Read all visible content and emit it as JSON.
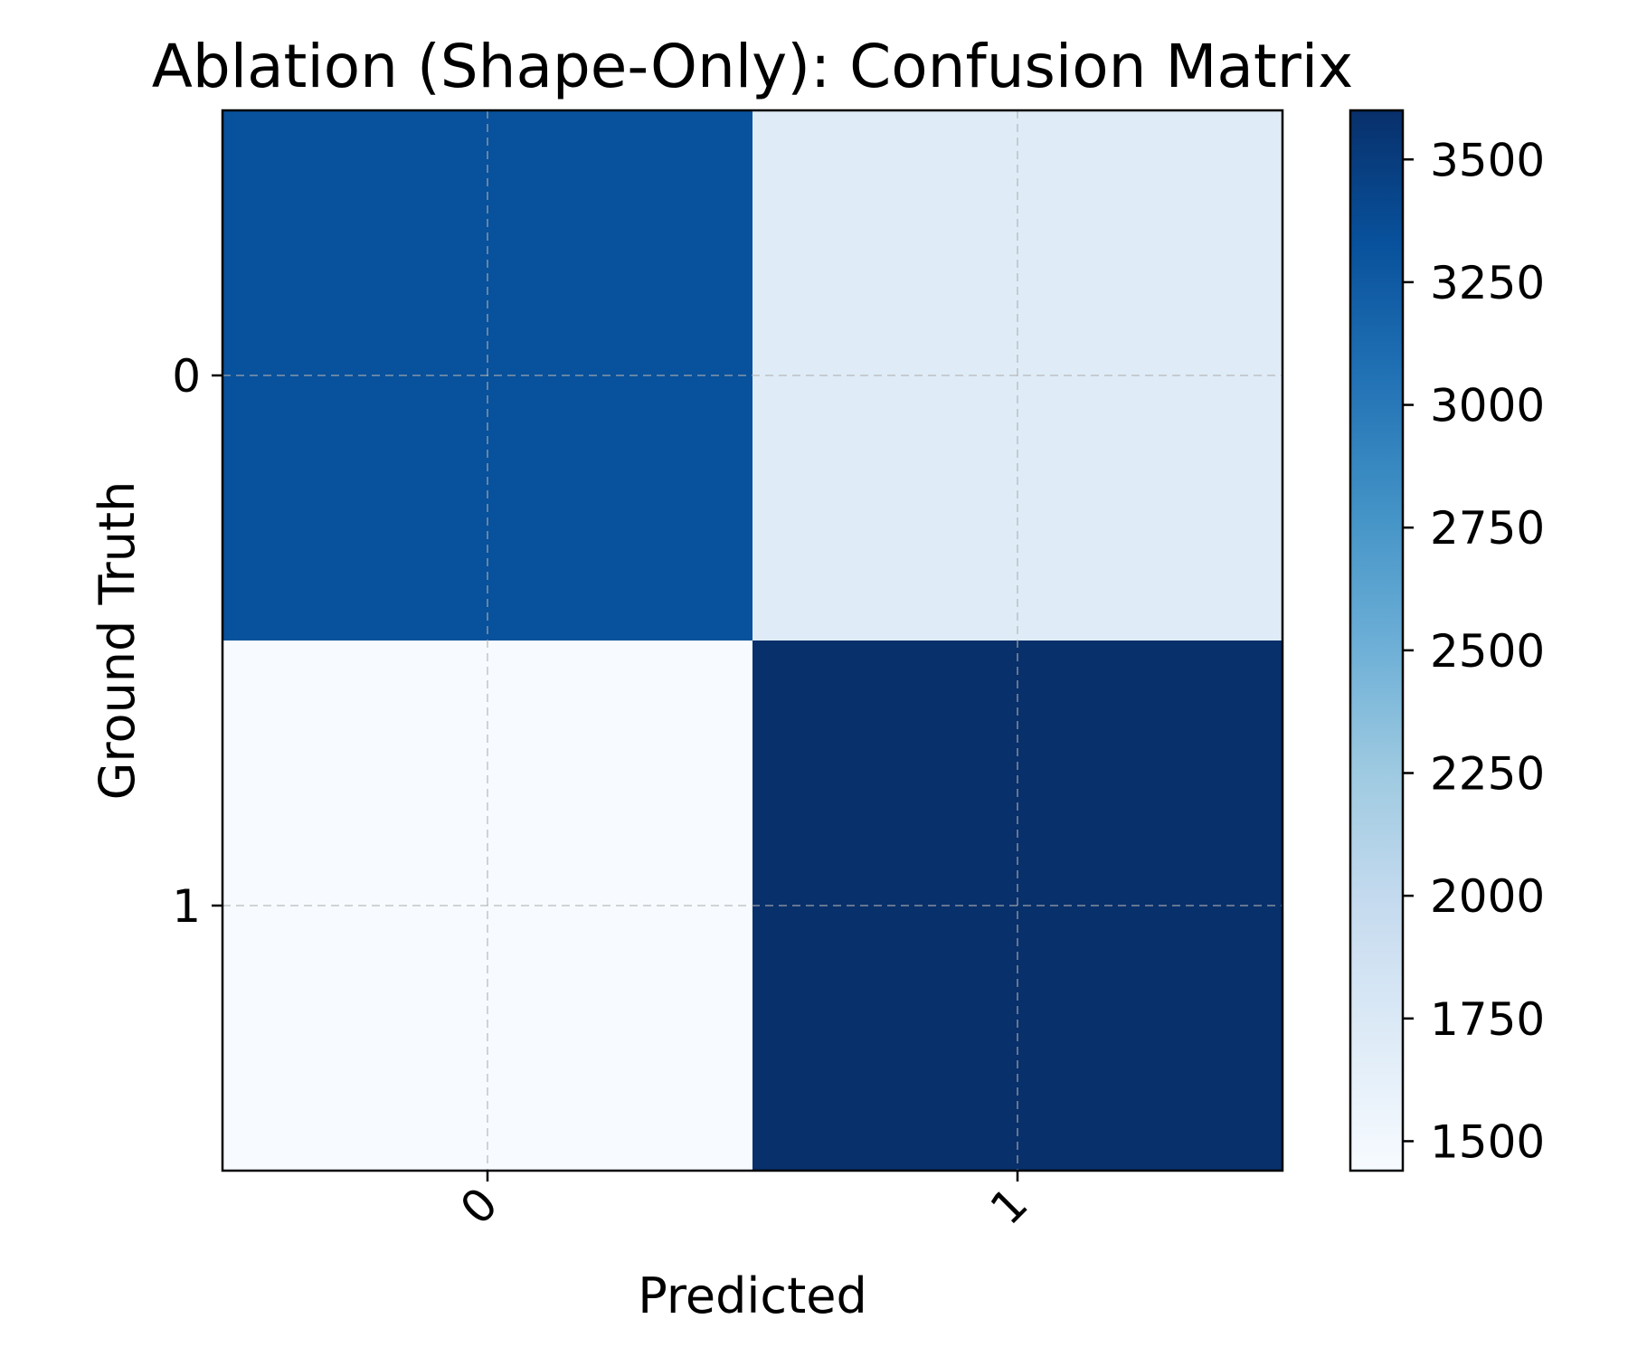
{
  "chart_data": {
    "type": "heatmap",
    "title": "Ablation (Shape-Only): Confusion Matrix",
    "xlabel": "Predicted",
    "ylabel": "Ground Truth",
    "x_categories": [
      "0",
      "1"
    ],
    "y_categories": [
      "0",
      "1"
    ],
    "values": [
      [
        3330,
        1700
      ],
      [
        1440,
        3600
      ]
    ],
    "colormap": "Blues",
    "value_range": [
      1440,
      3600
    ],
    "colorbar": {
      "ticks": [
        1500,
        1750,
        2000,
        2250,
        2500,
        2750,
        3000,
        3250,
        3500
      ],
      "tick_labels": [
        "1500",
        "1750",
        "2000",
        "2250",
        "2500",
        "2750",
        "3000",
        "3250",
        "3500"
      ],
      "placement": "right"
    },
    "grid": true,
    "grid_style": "dashed",
    "x_tick_rotation": "45 degrees",
    "cell_annotations": false
  }
}
